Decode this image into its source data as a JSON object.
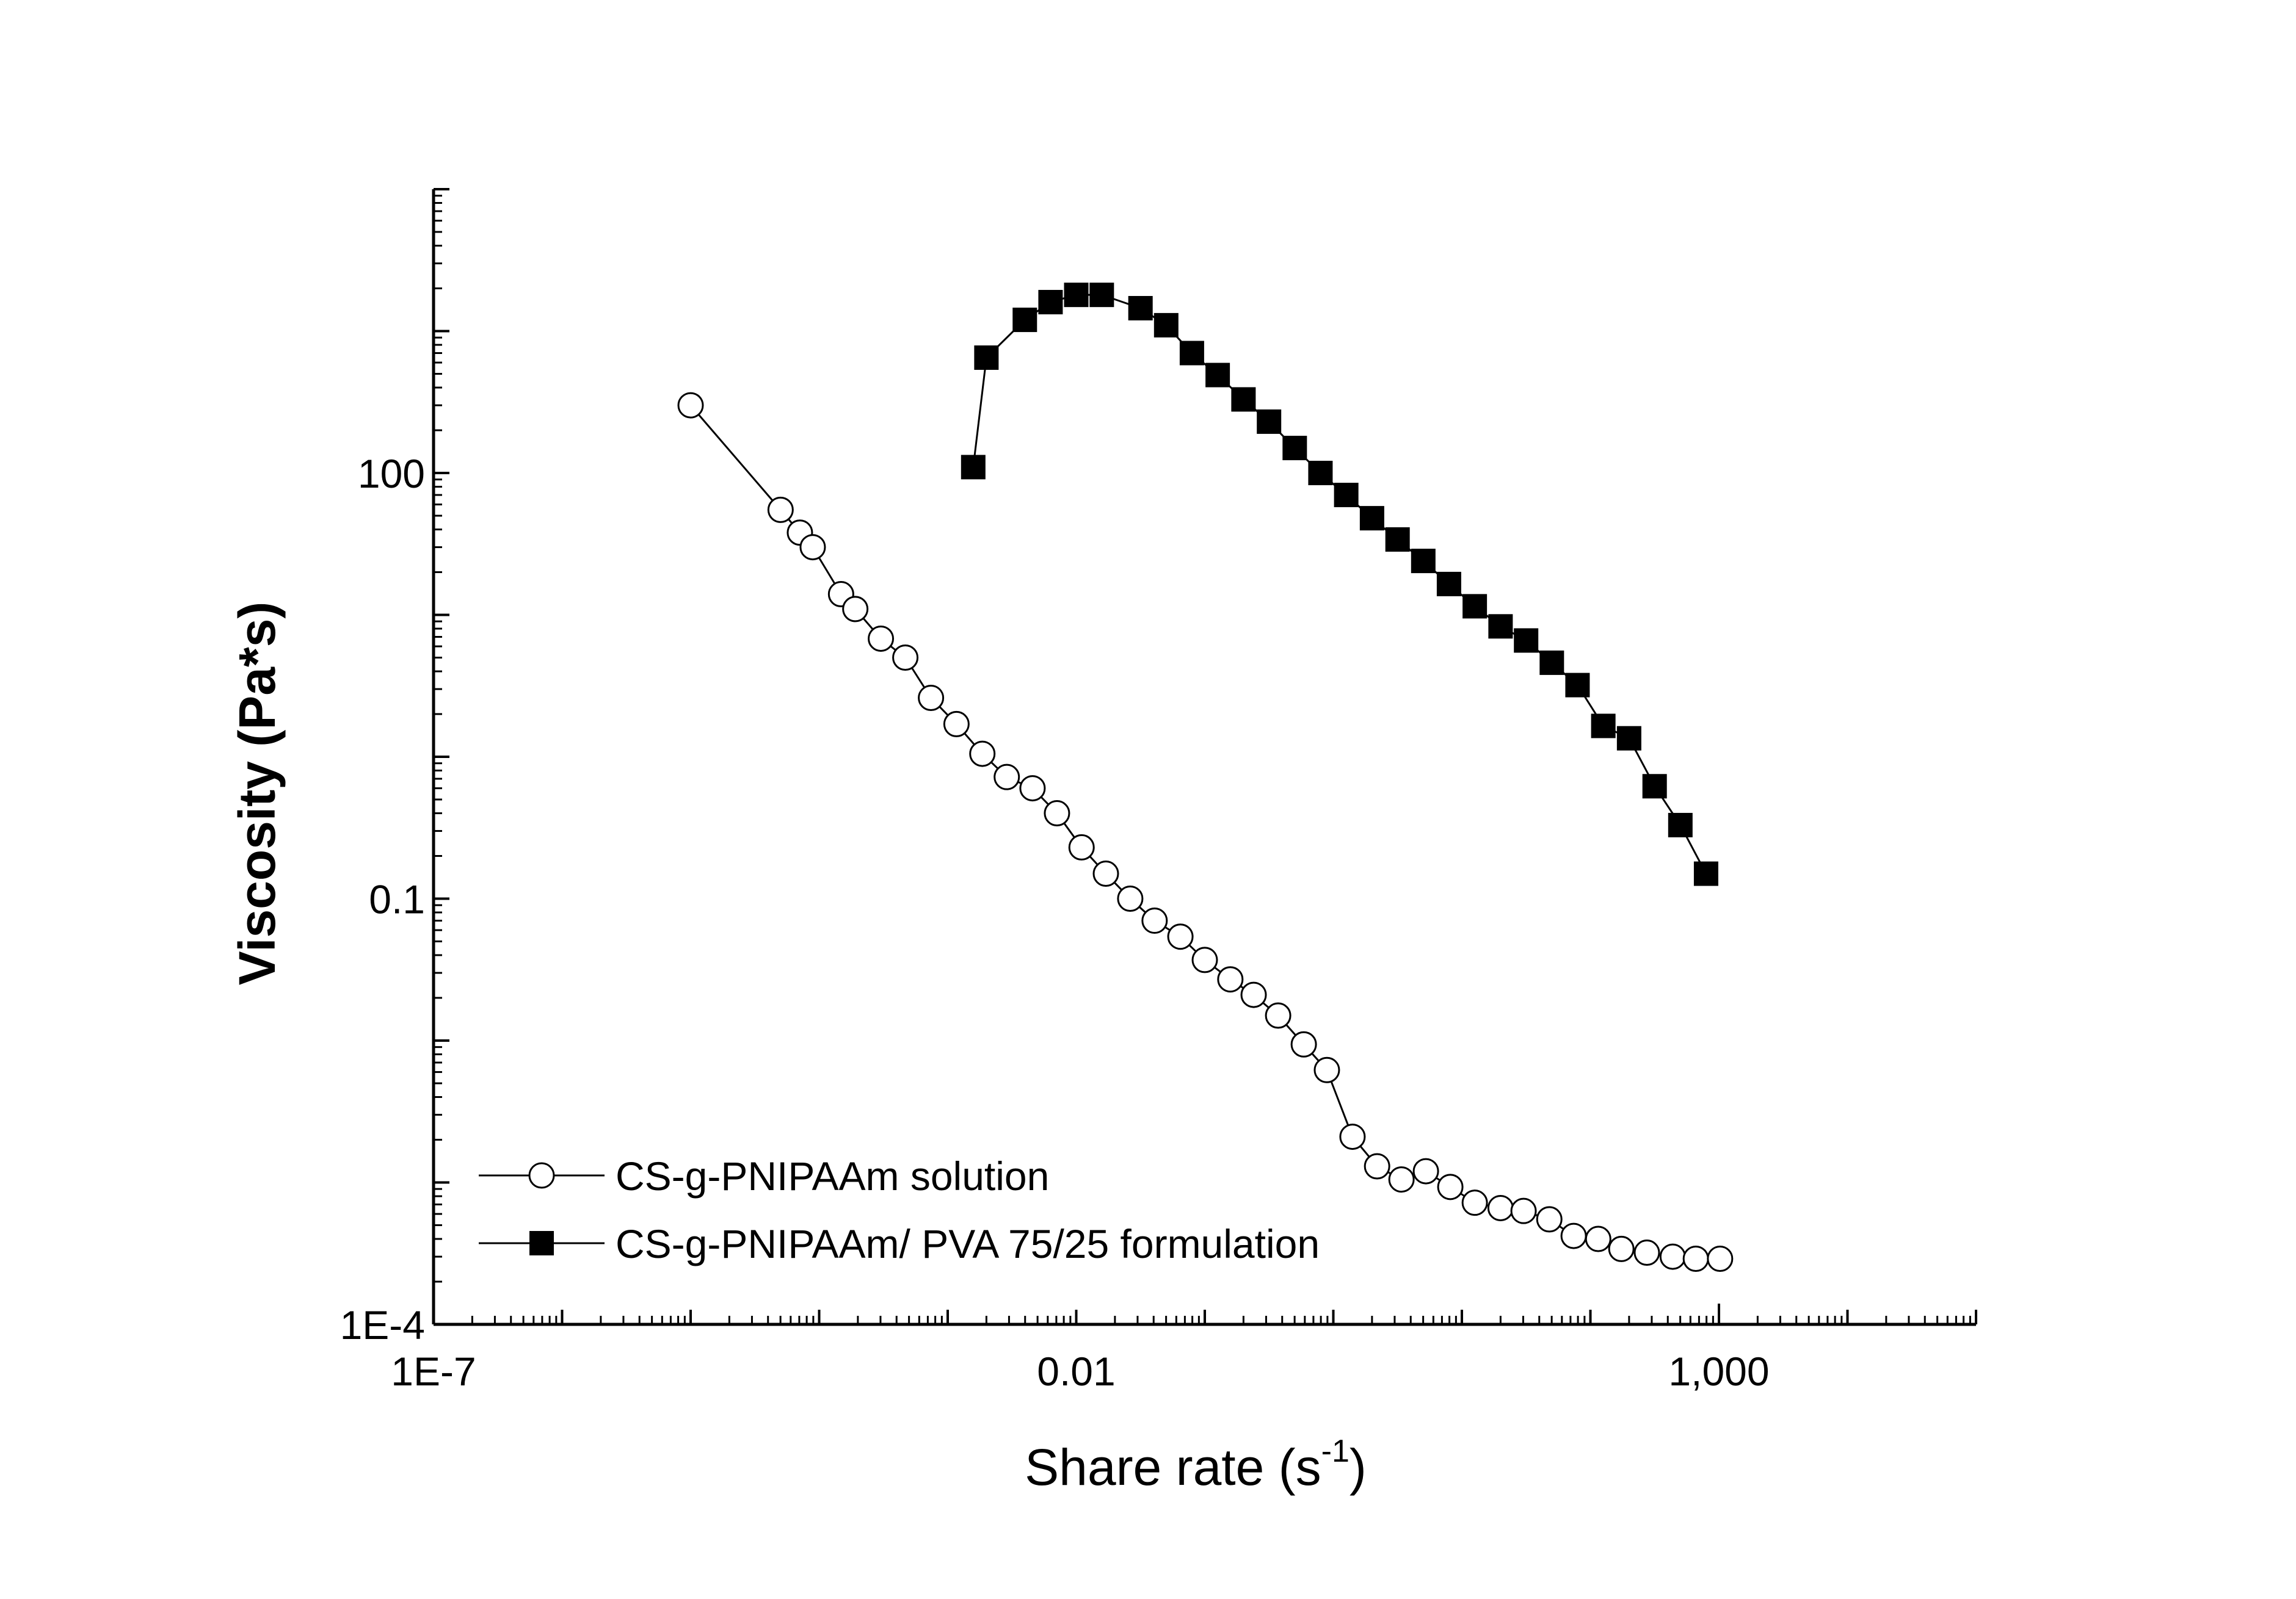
{
  "chart_data": {
    "type": "scatter",
    "title": "",
    "xlabel": "Share rate (s",
    "xlabel_superscript": "-1",
    "xlabel_suffix": ")",
    "ylabel": "Viscosity (Pa*s)",
    "xscale": "log",
    "yscale": "log",
    "xlim": [
      1e-07,
      100000.0
    ],
    "ylim": [
      0.0001,
      10000.0
    ],
    "x_ticks": [
      {
        "value": 1e-07,
        "label": "1E-7"
      },
      {
        "value": 0.01,
        "label": "0.01"
      },
      {
        "value": 1000,
        "label": "1,000"
      }
    ],
    "y_ticks": [
      {
        "value": 0.0001,
        "label": "1E-4"
      },
      {
        "value": 0.1,
        "label": "0.1"
      },
      {
        "value": 100,
        "label": "100"
      }
    ],
    "legend_position": "bottom-left",
    "series": [
      {
        "name": "CS-g-PNIPAAm solution",
        "marker": "open-circle",
        "x": [
          1e-05,
          5.01e-05,
          7.08e-05,
          8.91e-05,
          0.000148,
          0.000191,
          0.000302,
          0.000468,
          0.000741,
          0.00117,
          0.00186,
          0.00288,
          0.00457,
          0.00708,
          0.011,
          0.017,
          0.0263,
          0.0407,
          0.0646,
          0.1,
          0.158,
          0.24,
          0.372,
          0.589,
          0.891,
          1.41,
          2.19,
          3.39,
          5.25,
          8.13,
          12.6,
          20.0,
          30.2,
          47.9,
          74.1,
          115.0,
          174.0,
          275.0,
          437.0,
          661.0,
          1020.0
        ],
        "y": [
          300,
          55,
          38,
          30,
          14,
          11,
          6.8,
          5,
          2.6,
          1.7,
          1.05,
          0.72,
          0.6,
          0.4,
          0.23,
          0.15,
          0.1,
          0.07,
          0.054,
          0.037,
          0.027,
          0.021,
          0.015,
          0.0094,
          0.0062,
          0.0021,
          0.0013,
          0.00105,
          0.0012,
          0.00093,
          0.00072,
          0.00066,
          0.00063,
          0.00055,
          0.00042,
          0.0004,
          0.00034,
          0.00032,
          0.0003,
          0.00029,
          0.00029
        ]
      },
      {
        "name": "CS-g-PNIPAAm/ PVA 75/25 formulation",
        "marker": "filled-square",
        "x": [
          0.00158,
          0.0158,
          0.00631,
          0.00398,
          0.01,
          0.002,
          0.0316,
          0.0501,
          0.0794,
          0.126,
          0.2,
          0.316,
          0.501,
          0.794,
          1.26,
          2.0,
          3.16,
          5.01,
          7.94,
          12.6,
          20.0,
          31.6,
          50.1,
          79.4,
          126.0,
          200.0,
          316.0,
          501.0,
          794.0
        ],
        "y": [
          110,
          1800,
          1600,
          1200,
          1800,
          650,
          1450,
          1100,
          700,
          490,
          330,
          230,
          150,
          100,
          70,
          48,
          34,
          24,
          16.5,
          11.5,
          8.3,
          6.6,
          4.6,
          3.2,
          1.65,
          1.35,
          0.62,
          0.33,
          0.15
        ]
      }
    ]
  }
}
